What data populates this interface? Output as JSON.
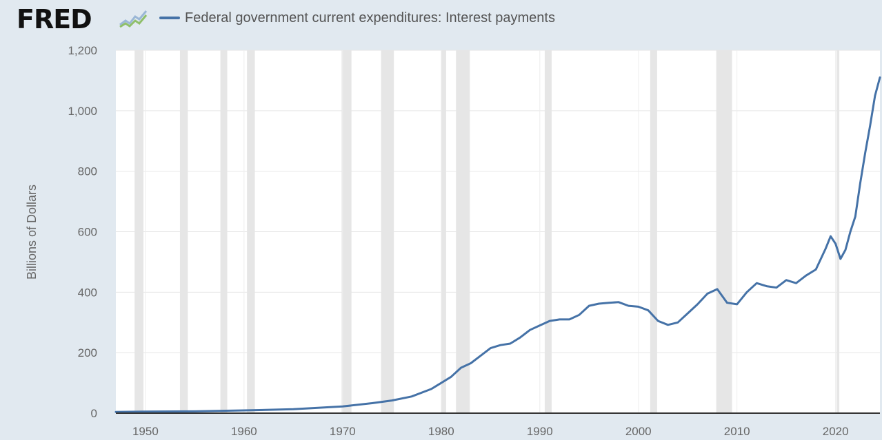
{
  "header": {
    "logo_text": "FRED",
    "legend_label": "Federal government current expenditures: Interest payments"
  },
  "colors": {
    "series": "#4572a7",
    "recession": "#e6e6e6",
    "plot_bg": "#ffffff",
    "page_bg": "#e1e9f0"
  },
  "chart_data": {
    "type": "line",
    "ylabel": "Billions of Dollars",
    "ylim": [
      0,
      1200
    ],
    "yticks": [
      0,
      200,
      400,
      600,
      800,
      1000,
      1200
    ],
    "ytick_labels": [
      "0",
      "200",
      "400",
      "600",
      "800",
      "1,000",
      "1,200"
    ],
    "xlim": [
      1947,
      2024.5
    ],
    "xticks": [
      1950,
      1960,
      1970,
      1980,
      1990,
      2000,
      2010,
      2020
    ],
    "xtick_labels": [
      "1950",
      "1960",
      "1970",
      "1980",
      "1990",
      "2000",
      "2010",
      "2020"
    ],
    "grid": true,
    "legend_position": "top",
    "recessions": [
      [
        1948.9,
        1949.8
      ],
      [
        1953.5,
        1954.3
      ],
      [
        1957.6,
        1958.3
      ],
      [
        1960.3,
        1961.1
      ],
      [
        1969.9,
        1970.9
      ],
      [
        1973.9,
        1975.2
      ],
      [
        1980.0,
        1980.5
      ],
      [
        1981.5,
        1982.9
      ],
      [
        1990.5,
        1991.2
      ],
      [
        2001.2,
        2001.9
      ],
      [
        2007.9,
        2009.5
      ],
      [
        2020.1,
        2020.3
      ]
    ],
    "series": [
      {
        "name": "Federal government current expenditures: Interest payments",
        "x": [
          1947,
          1950,
          1955,
          1960,
          1965,
          1970,
          1973,
          1975,
          1977,
          1979,
          1980,
          1981,
          1982,
          1983,
          1984,
          1985,
          1986,
          1987,
          1988,
          1989,
          1990,
          1991,
          1992,
          1993,
          1994,
          1995,
          1996,
          1997,
          1998,
          1999,
          2000,
          2001,
          2002,
          2003,
          2004,
          2005,
          2006,
          2007,
          2008,
          2009,
          2010,
          2011,
          2012,
          2013,
          2014,
          2015,
          2016,
          2017,
          2018,
          2019,
          2019.5,
          2020,
          2020.5,
          2021,
          2021.5,
          2022,
          2022.5,
          2023,
          2023.5,
          2024,
          2024.5
        ],
        "values": [
          4,
          5,
          6,
          9,
          13,
          22,
          33,
          42,
          55,
          80,
          100,
          120,
          150,
          165,
          190,
          215,
          225,
          230,
          250,
          275,
          290,
          305,
          310,
          310,
          325,
          355,
          362,
          365,
          367,
          355,
          352,
          340,
          305,
          292,
          300,
          330,
          360,
          395,
          410,
          365,
          360,
          400,
          430,
          420,
          415,
          440,
          430,
          455,
          475,
          545,
          585,
          560,
          510,
          540,
          600,
          650,
          760,
          860,
          950,
          1050,
          1110
        ]
      }
    ]
  }
}
